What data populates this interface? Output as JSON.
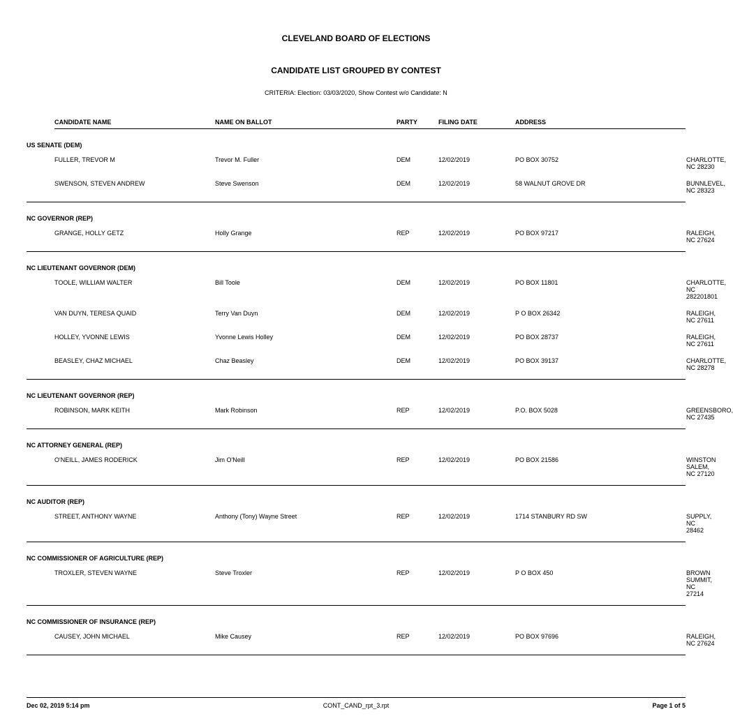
{
  "title1": "CLEVELAND BOARD OF ELECTIONS",
  "title2": "CANDIDATE LIST GROUPED BY CONTEST",
  "criteria": "CRITERIA:  Election: 03/03/2020, Show Contest w/o Candidate: N",
  "headers": {
    "name": "CANDIDATE NAME",
    "ballot": "NAME ON BALLOT",
    "party": "PARTY",
    "filing": "FILING DATE",
    "address": "ADDRESS"
  },
  "contests": [
    {
      "title": "US SENATE (DEM)",
      "candidates": [
        {
          "name": "FULLER, TREVOR M",
          "ballot": "Trevor M. Fuller",
          "party": "DEM",
          "filing": "12/02/2019",
          "addr1": "PO BOX 30752",
          "addr2": "CHARLOTTE, NC 28230"
        },
        {
          "name": "SWENSON, STEVEN ANDREW",
          "ballot": "Steve Swenson",
          "party": "DEM",
          "filing": "12/02/2019",
          "addr1": "58 WALNUT GROVE DR",
          "addr2": "BUNNLEVEL, NC 28323"
        }
      ]
    },
    {
      "title": "NC GOVERNOR (REP)",
      "candidates": [
        {
          "name": "GRANGE, HOLLY GETZ",
          "ballot": "Holly Grange",
          "party": "REP",
          "filing": "12/02/2019",
          "addr1": "PO BOX 97217",
          "addr2": "RALEIGH, NC 27624"
        }
      ]
    },
    {
      "title": "NC LIEUTENANT GOVERNOR (DEM)",
      "candidates": [
        {
          "name": "TOOLE, WILLIAM WALTER",
          "ballot": "Bill Toole",
          "party": "DEM",
          "filing": "12/02/2019",
          "addr1": "PO BOX 11801",
          "addr2": "CHARLOTTE, NC 282201801"
        },
        {
          "name": "VAN DUYN, TERESA QUAID",
          "ballot": "Terry Van Duyn",
          "party": "DEM",
          "filing": "12/02/2019",
          "addr1": "P O BOX 26342",
          "addr2": "RALEIGH, NC 27611"
        },
        {
          "name": "HOLLEY, YVONNE LEWIS",
          "ballot": "Yvonne Lewis Holley",
          "party": "DEM",
          "filing": "12/02/2019",
          "addr1": "PO BOX 28737",
          "addr2": "RALEIGH, NC 27611"
        },
        {
          "name": "BEASLEY, CHAZ MICHAEL",
          "ballot": "Chaz Beasley",
          "party": "DEM",
          "filing": "12/02/2019",
          "addr1": "PO BOX 39137",
          "addr2": "CHARLOTTE, NC 28278"
        }
      ]
    },
    {
      "title": "NC LIEUTENANT GOVERNOR (REP)",
      "candidates": [
        {
          "name": "ROBINSON, MARK KEITH",
          "ballot": "Mark Robinson",
          "party": "REP",
          "filing": "12/02/2019",
          "addr1": "P.O. BOX 5028",
          "addr2": "GREENSBORO, NC 27435"
        }
      ]
    },
    {
      "title": "NC ATTORNEY GENERAL (REP)",
      "candidates": [
        {
          "name": "O'NEILL, JAMES RODERICK",
          "ballot": "Jim O'Neill",
          "party": "REP",
          "filing": "12/02/2019",
          "addr1": "PO BOX 21586",
          "addr2": "WINSTON SALEM, NC 27120"
        }
      ]
    },
    {
      "title": "NC AUDITOR (REP)",
      "candidates": [
        {
          "name": "STREET, ANTHONY WAYNE",
          "ballot": "Anthony (Tony) Wayne Street",
          "party": "REP",
          "filing": "12/02/2019",
          "addr1": "1714 STANBURY RD SW",
          "addr2": "SUPPLY, NC 28462"
        }
      ]
    },
    {
      "title": "NC COMMISSIONER OF AGRICULTURE (REP)",
      "candidates": [
        {
          "name": "TROXLER, STEVEN WAYNE",
          "ballot": "Steve Troxler",
          "party": "REP",
          "filing": "12/02/2019",
          "addr1": "P O BOX 450",
          "addr2": "BROWN SUMMIT, NC 27214"
        }
      ]
    },
    {
      "title": "NC COMMISSIONER OF INSURANCE (REP)",
      "candidates": [
        {
          "name": "CAUSEY, JOHN MICHAEL",
          "ballot": "Mike Causey",
          "party": "REP",
          "filing": "12/02/2019",
          "addr1": "PO BOX 97696",
          "addr2": "RALEIGH, NC 27624"
        }
      ]
    }
  ],
  "footer": {
    "left": "Dec 02, 2019   5:14 pm",
    "center": "CONT_CAND_rpt_3.rpt",
    "right": "Page 1 of 5"
  }
}
